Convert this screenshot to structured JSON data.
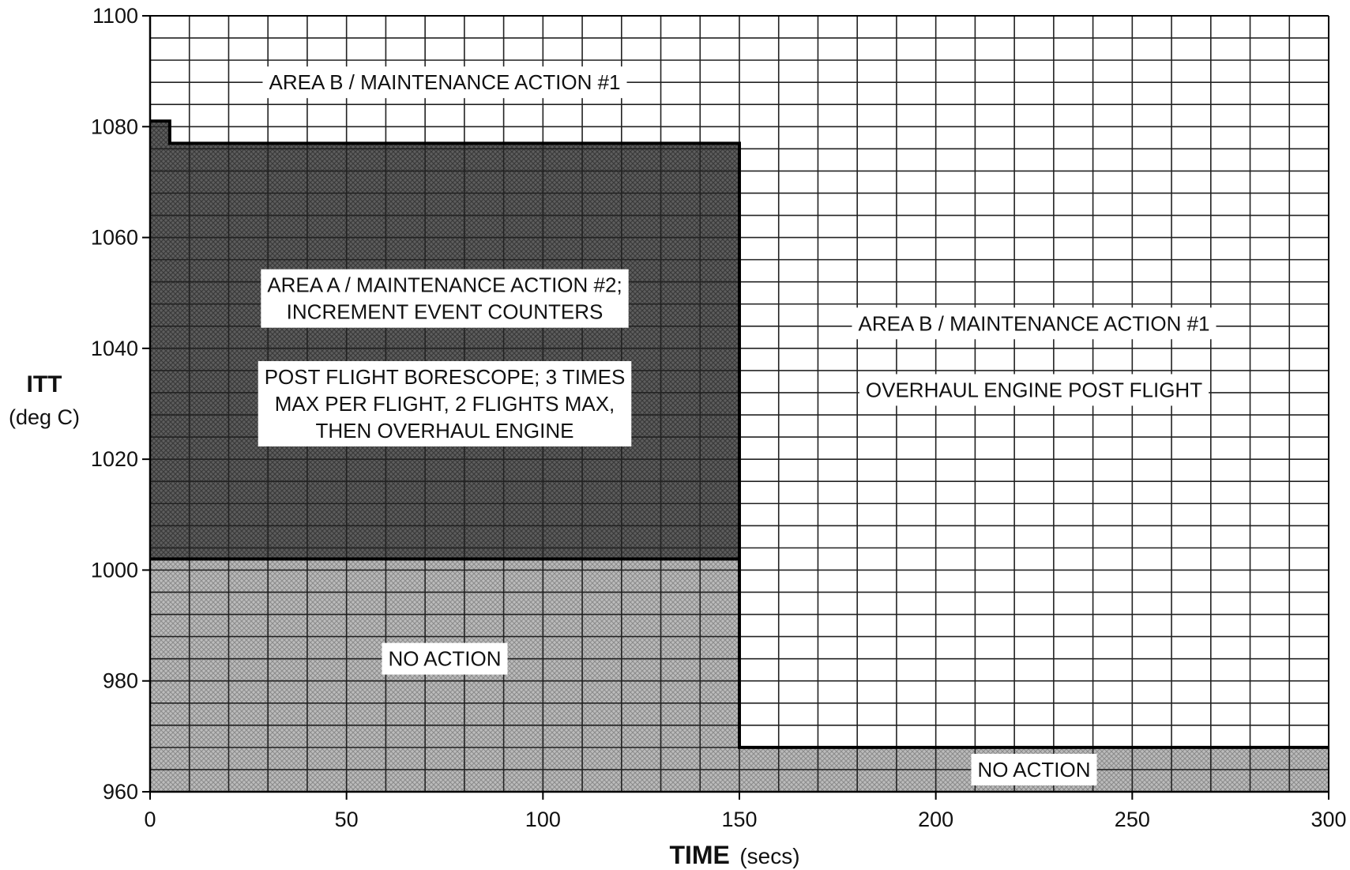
{
  "chart_data": {
    "type": "area",
    "title": "",
    "xlabel": "TIME",
    "xlabel_unit": "(secs)",
    "ylabel": "ITT",
    "ylabel_unit": "(deg C)",
    "xlim": [
      0,
      300
    ],
    "ylim": [
      960,
      1100
    ],
    "x_ticks": [
      0,
      50,
      100,
      150,
      200,
      250,
      300
    ],
    "y_ticks": [
      960,
      980,
      1000,
      1020,
      1040,
      1060,
      1080,
      1100
    ],
    "grid": true,
    "grid_minor_x": 10,
    "grid_minor_y": 4,
    "regions": [
      {
        "name": "NO ACTION",
        "fill": "light-crosshatch",
        "polygon": [
          [
            0,
            960
          ],
          [
            150,
            960
          ],
          [
            150,
            1002
          ],
          [
            0,
            1002
          ]
        ]
      },
      {
        "name": "AREA A / MAINTENANCE ACTION #2",
        "fill": "dark-crosshatch",
        "polygon": [
          [
            0,
            1002
          ],
          [
            150,
            1002
          ],
          [
            150,
            1077
          ],
          [
            5,
            1077
          ],
          [
            5,
            1081
          ],
          [
            0,
            1081
          ]
        ]
      },
      {
        "name": "NO ACTION",
        "fill": "light-crosshatch",
        "polygon": [
          [
            150,
            960
          ],
          [
            300,
            960
          ],
          [
            300,
            968
          ],
          [
            150,
            968
          ]
        ]
      }
    ],
    "boundary_lines": [
      [
        [
          0,
          1081
        ],
        [
          5,
          1081
        ],
        [
          5,
          1077
        ],
        [
          150,
          1077
        ],
        [
          150,
          968
        ],
        [
          300,
          968
        ]
      ],
      [
        [
          0,
          1002
        ],
        [
          150,
          1002
        ]
      ]
    ],
    "annotations": [
      {
        "lines": [
          "AREA B / MAINTENANCE ACTION #1"
        ],
        "x": 75,
        "y": 1088
      },
      {
        "lines": [
          "AREA A / MAINTENANCE ACTION #2;",
          "INCREMENT EVENT COUNTERS"
        ],
        "x": 75,
        "y": 1049
      },
      {
        "lines": [
          "POST FLIGHT BORESCOPE; 3 TIMES",
          "MAX PER FLIGHT, 2 FLIGHTS MAX,",
          "THEN OVERHAUL ENGINE"
        ],
        "x": 75,
        "y": 1030
      },
      {
        "lines": [
          "NO ACTION"
        ],
        "x": 75,
        "y": 984
      },
      {
        "lines": [
          "AREA B / MAINTENANCE ACTION #1"
        ],
        "x": 225,
        "y": 1044.5
      },
      {
        "lines": [
          "OVERHAUL ENGINE POST FLIGHT"
        ],
        "x": 225,
        "y": 1032.5
      },
      {
        "lines": [
          "NO ACTION"
        ],
        "x": 225,
        "y": 964
      }
    ],
    "colors": {
      "dark_fill": "#5e5e5e",
      "light_fill": "#b4b4b4",
      "grid_line": "#222222",
      "boundary": "#000000"
    }
  }
}
